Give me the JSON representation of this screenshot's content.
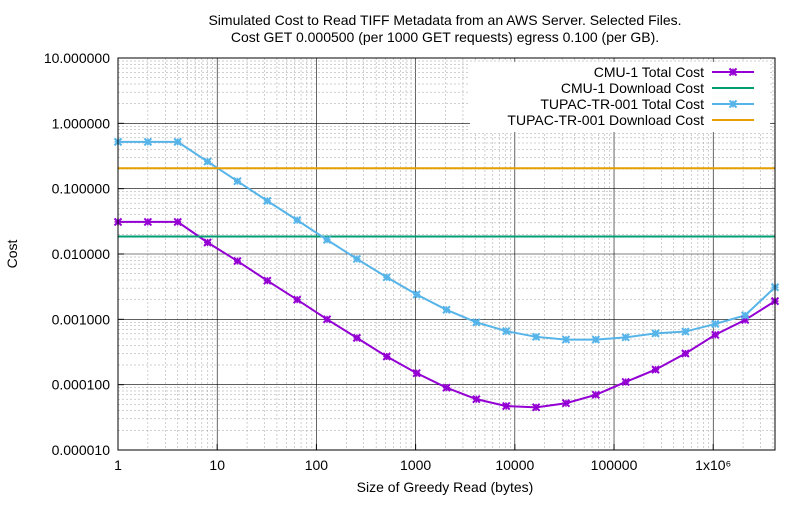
{
  "chart_data": {
    "type": "line",
    "title": "Simulated Cost to Read TIFF Metadata from an AWS Server. Selected Files.",
    "subtitle": "Cost GET 0.000500 (per 1000 GET requests) egress 0.100 (per GB).",
    "xlabel": "Size of Greedy Read (bytes)",
    "ylabel": "Cost",
    "xscale": "log",
    "yscale": "log",
    "xlim": [
      1,
      4194304
    ],
    "ylim": [
      1e-05,
      10
    ],
    "grid": true,
    "legend_position": "top-right",
    "x_tick_labels": [
      {
        "value": 1,
        "label": "1"
      },
      {
        "value": 10,
        "label": "10"
      },
      {
        "value": 100,
        "label": "100"
      },
      {
        "value": 1000,
        "label": "1000"
      },
      {
        "value": 10000,
        "label": "10000"
      },
      {
        "value": 100000,
        "label": "100000"
      },
      {
        "value": 1000000,
        "label": "1x10⁶"
      }
    ],
    "y_tick_labels": [
      {
        "value": 10,
        "label": "10.000000"
      },
      {
        "value": 1,
        "label": "1.000000"
      },
      {
        "value": 0.1,
        "label": "0.100000"
      },
      {
        "value": 0.01,
        "label": "0.010000"
      },
      {
        "value": 0.001,
        "label": "0.001000"
      },
      {
        "value": 0.0001,
        "label": "0.000100"
      },
      {
        "value": 1e-05,
        "label": "0.000010"
      }
    ],
    "series": [
      {
        "name": "CMU-1 Total Cost",
        "color": "#9400d3",
        "marker": "x",
        "x": [
          1,
          2,
          4,
          8,
          16,
          32,
          64,
          128,
          256,
          512,
          1024,
          2048,
          4096,
          8192,
          16384,
          32768,
          65536,
          131072,
          262144,
          524288,
          1048576,
          2097152,
          4194304
        ],
        "y": [
          0.031,
          0.031,
          0.031,
          0.015,
          0.0078,
          0.0039,
          0.002,
          0.001,
          0.00052,
          0.00027,
          0.00015,
          9e-05,
          6e-05,
          4.7e-05,
          4.5e-05,
          5.2e-05,
          7e-05,
          0.00011,
          0.00017,
          0.0003,
          0.00058,
          0.00098,
          0.0019
        ]
      },
      {
        "name": "CMU-1 Download Cost",
        "color": "#009e73",
        "marker": "none",
        "x": [
          1,
          4194304
        ],
        "y": [
          0.0185,
          0.0185
        ]
      },
      {
        "name": "TUPAC-TR-001 Total Cost",
        "color": "#56b4e9",
        "marker": "x",
        "x": [
          1,
          2,
          4,
          8,
          16,
          32,
          64,
          128,
          256,
          512,
          1024,
          2048,
          4096,
          8192,
          16384,
          32768,
          65536,
          131072,
          262144,
          524288,
          1048576,
          2097152,
          4194304
        ],
        "y": [
          0.52,
          0.52,
          0.52,
          0.26,
          0.13,
          0.065,
          0.033,
          0.0165,
          0.0084,
          0.0044,
          0.0024,
          0.0014,
          0.0009,
          0.00066,
          0.00054,
          0.00049,
          0.00049,
          0.00053,
          0.00061,
          0.00065,
          0.00085,
          0.00115,
          0.0031
        ]
      },
      {
        "name": "TUPAC-TR-001 Download Cost",
        "color": "#e69f00",
        "marker": "none",
        "x": [
          1,
          4194304
        ],
        "y": [
          0.205,
          0.205
        ]
      }
    ]
  }
}
